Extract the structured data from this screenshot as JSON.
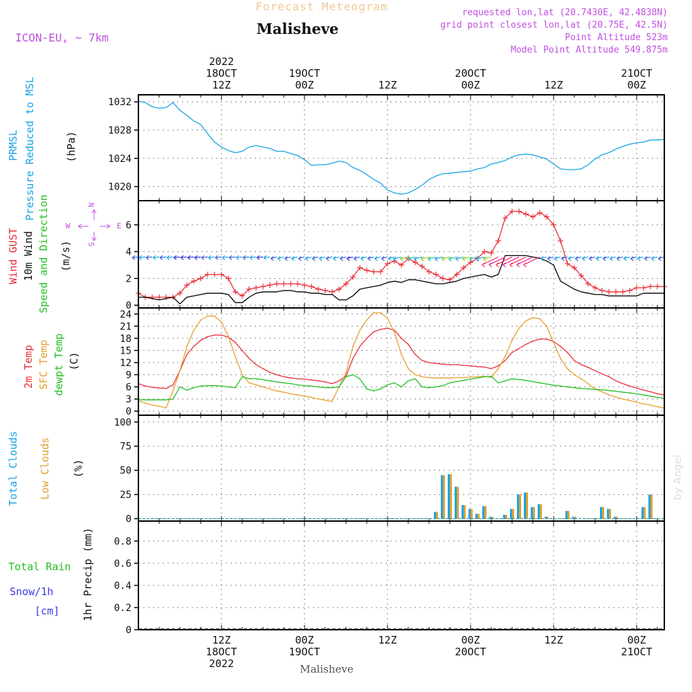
{
  "header": {
    "super_title": "Forecast Meteogram",
    "station": "Malisheve",
    "model": "ICON-EU, ~ 7km",
    "requested": "requested lon,lat (20.7430E, 42.4838N)",
    "grid_point": "grid point closest lon,lat (20.75E, 42.5N)",
    "point_alt": "Point Altitude 523m",
    "model_alt": "Model Point Altitude 549.875m",
    "credit": "by Angel",
    "footer_station": "Malisheve"
  },
  "colors": {
    "pressure": "#1aa4e6",
    "gust": "#e8303a",
    "wind10m": "#000000",
    "t2m": "#e8303a",
    "sfc": "#e8a030",
    "dewpt": "#22c022",
    "total_clouds": "#1aa4e6",
    "low_clouds": "#e0a030",
    "rain": "#22c022",
    "snow": "#3a3ae0",
    "label_purple": "#c050e0",
    "grid": "#888888"
  },
  "time_axis": {
    "top_labels": [
      {
        "t": 12,
        "lines": [
          "2022",
          "18OCT",
          "12Z"
        ]
      },
      {
        "t": 24,
        "lines": [
          "19OCT",
          "00Z"
        ]
      },
      {
        "t": 36,
        "lines": [
          "12Z"
        ]
      },
      {
        "t": 48,
        "lines": [
          "20OCT",
          "00Z"
        ]
      },
      {
        "t": 60,
        "lines": [
          "12Z"
        ]
      },
      {
        "t": 72,
        "lines": [
          "21OCT",
          "00Z"
        ]
      }
    ],
    "bottom_labels": [
      {
        "t": 12,
        "lines": [
          "12Z",
          "18OCT",
          "2022"
        ]
      },
      {
        "t": 24,
        "lines": [
          "00Z",
          "19OCT"
        ]
      },
      {
        "t": 36,
        "lines": [
          "12Z"
        ]
      },
      {
        "t": 48,
        "lines": [
          "00Z",
          "20OCT"
        ]
      },
      {
        "t": 60,
        "lines": [
          "12Z"
        ]
      },
      {
        "t": 72,
        "lines": [
          "00Z",
          "21OCT"
        ]
      }
    ]
  },
  "panel_labels": {
    "pressure": [
      "PRMSL",
      "Pressure Reduced to MSL",
      "(hPa)"
    ],
    "wind": [
      "Wind GUST",
      "10m Wind",
      "Speed and Direction",
      "(m/s)"
    ],
    "compass": {
      "n": "N",
      "s": "S",
      "w": "W",
      "e": "E"
    },
    "temp": [
      "2m Temp",
      "SFC Temp",
      "dewpt Temp",
      "(C)"
    ],
    "clouds": [
      "Total Clouds",
      "Low Clouds",
      "(%)"
    ],
    "precip": [
      "Total Rain",
      "Snow/1h",
      "[cm]",
      "1hr Precip (mm)"
    ]
  },
  "chart_data": [
    {
      "type": "line",
      "panel": "pressure",
      "ylim": [
        1018,
        1033
      ],
      "yticks": [
        1020,
        1024,
        1028,
        1032
      ],
      "x_hours": [
        0,
        1,
        2,
        3,
        4,
        5,
        6,
        7,
        8,
        9,
        10,
        11,
        12,
        13,
        14,
        15,
        16,
        17,
        18,
        19,
        20,
        21,
        22,
        23,
        24,
        25,
        26,
        27,
        28,
        29,
        30,
        31,
        32,
        33,
        34,
        35,
        36,
        37,
        38,
        39,
        40,
        41,
        42,
        43,
        44,
        45,
        46,
        47,
        48,
        49,
        50,
        51,
        52,
        53,
        54,
        55,
        56,
        57,
        58,
        59,
        60,
        61,
        62,
        63,
        64,
        65,
        66,
        67,
        68,
        69,
        70,
        71,
        72,
        73,
        74,
        75,
        76
      ],
      "series": [
        {
          "name": "PRMSL",
          "values": [
            1032.1,
            1031.9,
            1031.3,
            1031.1,
            1031.2,
            1031.9,
            1030.8,
            1030.1,
            1029.3,
            1028.8,
            1027.5,
            1026.3,
            1025.6,
            1025.1,
            1024.8,
            1025.0,
            1025.6,
            1025.8,
            1025.6,
            1025.4,
            1025.0,
            1025.0,
            1024.7,
            1024.4,
            1023.8,
            1023.0,
            1023.1,
            1023.1,
            1023.3,
            1023.6,
            1023.4,
            1022.7,
            1022.3,
            1021.7,
            1021.0,
            1020.5,
            1019.5,
            1019.1,
            1018.9,
            1019.1,
            1019.6,
            1020.2,
            1021.0,
            1021.5,
            1021.8,
            1021.9,
            1022.0,
            1022.1,
            1022.2,
            1022.5,
            1022.7,
            1023.2,
            1023.4,
            1023.7,
            1024.2,
            1024.5,
            1024.6,
            1024.5,
            1024.2,
            1023.9,
            1023.2,
            1022.5,
            1022.4,
            1022.4,
            1022.5,
            1023.1,
            1023.9,
            1024.5,
            1024.8,
            1025.3,
            1025.7,
            1026.0,
            1026.2,
            1026.3,
            1026.6,
            1026.6,
            1026.7
          ]
        }
      ]
    },
    {
      "type": "line",
      "panel": "wind",
      "ylim": [
        -0.2,
        7.8
      ],
      "yticks": [
        0,
        2,
        4,
        6
      ],
      "x_hours": [
        0,
        1,
        2,
        3,
        4,
        5,
        6,
        7,
        8,
        9,
        10,
        11,
        12,
        13,
        14,
        15,
        16,
        17,
        18,
        19,
        20,
        21,
        22,
        23,
        24,
        25,
        26,
        27,
        28,
        29,
        30,
        31,
        32,
        33,
        34,
        35,
        36,
        37,
        38,
        39,
        40,
        41,
        42,
        43,
        44,
        45,
        46,
        47,
        48,
        49,
        50,
        51,
        52,
        53,
        54,
        55,
        56,
        57,
        58,
        59,
        60,
        61,
        62,
        63,
        64,
        65,
        66,
        67,
        68,
        69,
        70,
        71,
        72,
        73,
        74,
        75,
        76
      ],
      "series": [
        {
          "name": "Wind GUST",
          "values": [
            0.9,
            0.6,
            0.6,
            0.6,
            0.6,
            0.6,
            0.9,
            1.5,
            1.8,
            2.0,
            2.3,
            2.3,
            2.3,
            2.0,
            1.0,
            0.7,
            1.2,
            1.3,
            1.4,
            1.5,
            1.6,
            1.6,
            1.6,
            1.6,
            1.5,
            1.4,
            1.2,
            1.1,
            1.0,
            1.2,
            1.6,
            2.1,
            2.8,
            2.6,
            2.5,
            2.5,
            3.1,
            3.3,
            3.0,
            3.5,
            3.2,
            2.9,
            2.5,
            2.3,
            2.0,
            1.9,
            2.3,
            2.8,
            3.2,
            3.5,
            4.0,
            3.9,
            4.8,
            6.5,
            7.0,
            7.0,
            6.8,
            6.6,
            6.9,
            6.6,
            6.0,
            4.8,
            3.1,
            2.8,
            2.2,
            1.6,
            1.3,
            1.1,
            1.0,
            1.0,
            1.0,
            1.1,
            1.3,
            1.3,
            1.4,
            1.4,
            1.4
          ]
        },
        {
          "name": "10m Wind",
          "values": [
            0.6,
            0.6,
            0.5,
            0.4,
            0.5,
            0.6,
            0.1,
            0.6,
            0.7,
            0.8,
            0.9,
            0.9,
            0.9,
            0.8,
            0.2,
            0.2,
            0.6,
            0.9,
            1.0,
            1.0,
            1.0,
            1.1,
            1.1,
            1.0,
            1.0,
            0.9,
            0.9,
            0.8,
            0.8,
            0.4,
            0.4,
            0.7,
            1.2,
            1.3,
            1.4,
            1.5,
            1.7,
            1.8,
            1.7,
            1.9,
            1.9,
            1.8,
            1.7,
            1.6,
            1.6,
            1.7,
            1.8,
            2.0,
            2.1,
            2.2,
            2.3,
            2.1,
            2.3,
            3.7,
            3.7,
            3.7,
            3.7,
            3.6,
            3.5,
            3.3,
            3.0,
            1.8,
            1.5,
            1.2,
            1.0,
            0.9,
            0.8,
            0.8,
            0.7,
            0.7,
            0.7,
            0.7,
            0.7,
            0.9,
            0.9,
            0.9,
            0.9
          ]
        }
      ]
    },
    {
      "type": "line",
      "panel": "temperature",
      "ylim": [
        -1,
        25.5
      ],
      "yticks": [
        0,
        3,
        6,
        9,
        12,
        15,
        18,
        21,
        24
      ],
      "x_hours": [
        0,
        1,
        2,
        3,
        4,
        5,
        6,
        7,
        8,
        9,
        10,
        11,
        12,
        13,
        14,
        15,
        16,
        17,
        18,
        19,
        20,
        21,
        22,
        23,
        24,
        25,
        26,
        27,
        28,
        29,
        30,
        31,
        32,
        33,
        34,
        35,
        36,
        37,
        38,
        39,
        40,
        41,
        42,
        43,
        44,
        45,
        46,
        47,
        48,
        49,
        50,
        51,
        52,
        53,
        54,
        55,
        56,
        57,
        58,
        59,
        60,
        61,
        62,
        63,
        64,
        65,
        66,
        67,
        68,
        69,
        70,
        71,
        72,
        73,
        74,
        75,
        76
      ],
      "series": [
        {
          "name": "2m Temp",
          "values": [
            6.8,
            6.2,
            5.9,
            5.7,
            5.6,
            6.5,
            10.0,
            14.0,
            16.0,
            17.5,
            18.4,
            18.8,
            18.8,
            18.3,
            17.0,
            15.0,
            13.0,
            11.5,
            10.5,
            9.6,
            9.0,
            8.5,
            8.2,
            8.0,
            7.9,
            7.7,
            7.5,
            7.2,
            6.8,
            7.5,
            8.7,
            13.0,
            16.0,
            18.0,
            19.6,
            20.2,
            20.5,
            20.0,
            18.0,
            16.5,
            14.0,
            12.5,
            12.0,
            11.8,
            11.6,
            11.5,
            11.5,
            11.3,
            11.2,
            11.0,
            10.9,
            10.5,
            11.2,
            12.5,
            14.5,
            15.5,
            16.5,
            17.3,
            17.8,
            17.8,
            17.2,
            16.0,
            14.5,
            12.5,
            11.5,
            10.8,
            10.0,
            9.2,
            8.5,
            7.5,
            6.8,
            6.2,
            5.7,
            5.2,
            4.8,
            4.3,
            4.0
          ]
        },
        {
          "name": "SFC Temp",
          "values": [
            2.5,
            2.0,
            1.5,
            1.2,
            0.8,
            5.0,
            10.0,
            16.0,
            20.0,
            22.5,
            23.5,
            23.5,
            22.0,
            18.5,
            13.5,
            9.0,
            7.0,
            6.5,
            6.0,
            5.5,
            5.0,
            4.7,
            4.3,
            4.0,
            3.7,
            3.4,
            3.0,
            2.7,
            2.4,
            6.0,
            9.5,
            16.0,
            20.0,
            22.5,
            24.3,
            24.3,
            23.0,
            19.5,
            14.0,
            10.5,
            9.0,
            8.5,
            8.3,
            8.2,
            8.2,
            8.2,
            8.3,
            8.3,
            8.4,
            8.5,
            8.6,
            8.3,
            10.5,
            13.5,
            17.5,
            20.5,
            22.3,
            23.1,
            22.8,
            21.0,
            17.0,
            13.0,
            10.5,
            9.0,
            8.0,
            6.8,
            5.5,
            4.8,
            4.0,
            3.5,
            3.0,
            2.6,
            2.2,
            1.8,
            1.5,
            1.1,
            0.8
          ]
        },
        {
          "name": "dewpt Temp",
          "values": [
            2.8,
            2.8,
            2.8,
            2.8,
            2.8,
            3.0,
            6.0,
            5.2,
            5.8,
            6.2,
            6.3,
            6.3,
            6.2,
            6.0,
            5.8,
            8.5,
            8.0,
            8.0,
            7.8,
            7.5,
            7.2,
            7.0,
            6.8,
            6.5,
            6.3,
            6.2,
            6.0,
            5.8,
            5.8,
            6.0,
            8.5,
            9.0,
            8.0,
            5.5,
            5.0,
            5.5,
            6.5,
            7.0,
            6.0,
            7.5,
            8.0,
            6.0,
            5.8,
            6.0,
            6.3,
            7.0,
            7.3,
            7.6,
            7.9,
            8.2,
            8.5,
            8.6,
            7.0,
            7.5,
            8.0,
            7.8,
            7.6,
            7.3,
            7.0,
            6.7,
            6.4,
            6.2,
            6.0,
            5.8,
            5.6,
            5.5,
            5.4,
            5.3,
            5.1,
            4.9,
            4.7,
            4.5,
            4.3,
            4.0,
            3.7,
            3.4,
            3.2
          ]
        }
      ]
    },
    {
      "type": "bar",
      "panel": "clouds",
      "ylim": [
        -2.5,
        107
      ],
      "yticks": [
        0,
        25,
        50,
        75,
        100
      ],
      "x_hours": [
        43,
        44,
        45,
        46,
        47,
        48,
        49,
        50,
        51,
        52,
        53,
        54,
        55,
        56,
        57,
        58,
        59,
        60,
        61,
        62,
        63,
        64,
        65,
        66,
        67,
        68,
        69,
        70,
        71,
        72,
        73,
        74,
        75,
        76
      ],
      "series": [
        {
          "name": "Total Clouds",
          "values": [
            7,
            45,
            46,
            33,
            14,
            10,
            5,
            13,
            2,
            0,
            4,
            10,
            25,
            27,
            12,
            15,
            2,
            0,
            0,
            8,
            2,
            0,
            0,
            0,
            12,
            10,
            2,
            0,
            0,
            0,
            12,
            25,
            0,
            0
          ]
        },
        {
          "name": "Low Clouds",
          "values": [
            7,
            45,
            46,
            33,
            14,
            10,
            5,
            13,
            2,
            0,
            4,
            10,
            25,
            27,
            12,
            15,
            2,
            0,
            0,
            8,
            2,
            0,
            0,
            0,
            12,
            10,
            2,
            0,
            0,
            0,
            12,
            25,
            0,
            0
          ]
        }
      ]
    },
    {
      "type": "line",
      "panel": "precipitation",
      "ylim": [
        0,
        0.98
      ],
      "yticks": [
        0,
        0.2,
        0.4,
        0.6,
        0.8
      ],
      "ytick_labels": [
        "0",
        "0.2",
        "0.4",
        "0.6",
        "0.8"
      ],
      "x_hours": [
        0,
        76
      ],
      "series": [
        {
          "name": "Total Rain",
          "values": [
            0,
            0
          ]
        },
        {
          "name": "Snow/1h",
          "values": [
            0,
            0
          ]
        }
      ]
    }
  ]
}
